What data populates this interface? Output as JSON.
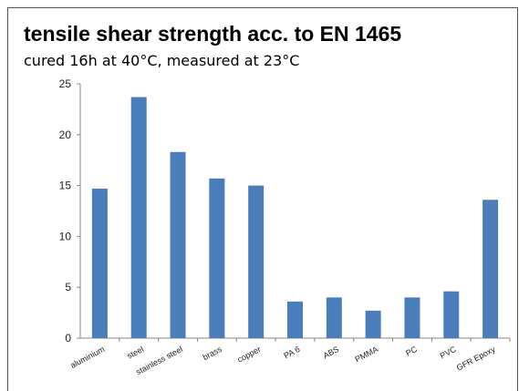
{
  "title": "tensile shear strength acc. to EN 1465",
  "subtitle": "cured 16h at 40°C, measured at 23°C",
  "chart_data": {
    "type": "bar",
    "categories": [
      "aluminium",
      "steel",
      "stainless steel",
      "brass",
      "copper",
      "PA 6",
      "ABS",
      "PMMA",
      "PC",
      "PVC",
      "GFR Epoxy"
    ],
    "values": [
      14.7,
      23.7,
      18.3,
      15.7,
      15.0,
      3.6,
      4.0,
      2.7,
      4.0,
      4.6,
      13.6
    ],
    "yticks": [
      0,
      5,
      10,
      15,
      20,
      25
    ],
    "ylim": [
      0,
      25
    ],
    "grid": false,
    "colors": {
      "bar": "#4a7ebb",
      "axis": "#888888"
    }
  }
}
